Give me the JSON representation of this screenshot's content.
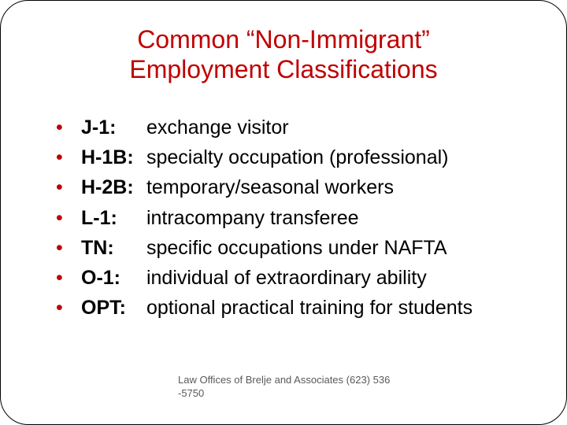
{
  "title": "Common “Non-Immigrant” Employment Classifications",
  "title_color": "#c00000",
  "title_fontsize": 32,
  "bullet_color": "#c00000",
  "body_fontsize": 25,
  "body_color": "#000000",
  "background_color": "#ffffff",
  "border_radius": 36,
  "items": [
    {
      "code": "J-1:",
      "desc": "exchange visitor"
    },
    {
      "code": "H-1B:",
      "desc": "specialty occupation (professional)"
    },
    {
      "code": "H-2B:",
      "desc": "temporary/seasonal workers"
    },
    {
      "code": "L-1:",
      "desc": "intracompany transferee"
    },
    {
      "code": "TN:",
      "desc": "specific occupations under NAFTA"
    },
    {
      "code": "O-1:",
      "desc": "individual of extraordinary ability"
    },
    {
      "code": "OPT:",
      "desc": "optional practical training for students"
    }
  ],
  "footer": "Law Offices of Brelje and Associates  (623) 536 -5750",
  "footer_color": "#595959",
  "footer_fontsize": 13
}
